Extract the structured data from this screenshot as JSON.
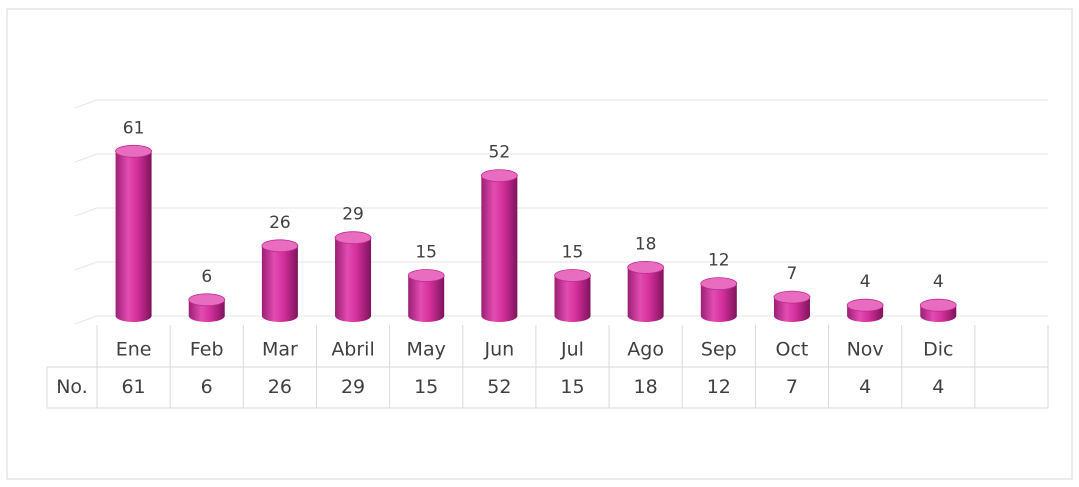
{
  "chart_data": {
    "type": "bar",
    "categories": [
      "Ene",
      "Feb",
      "Mar",
      "Abril",
      "May",
      "Jun",
      "Jul",
      "Ago",
      "Sep",
      "Oct",
      "Nov",
      "Dic"
    ],
    "series": [
      {
        "name": "No.",
        "color": "#d8339f",
        "values": [
          61,
          6,
          26,
          29,
          15,
          52,
          15,
          18,
          12,
          7,
          4,
          4
        ]
      }
    ],
    "ylim": [
      0,
      80
    ],
    "yticks": [
      0,
      20,
      40,
      60,
      80
    ],
    "grid": true
  }
}
